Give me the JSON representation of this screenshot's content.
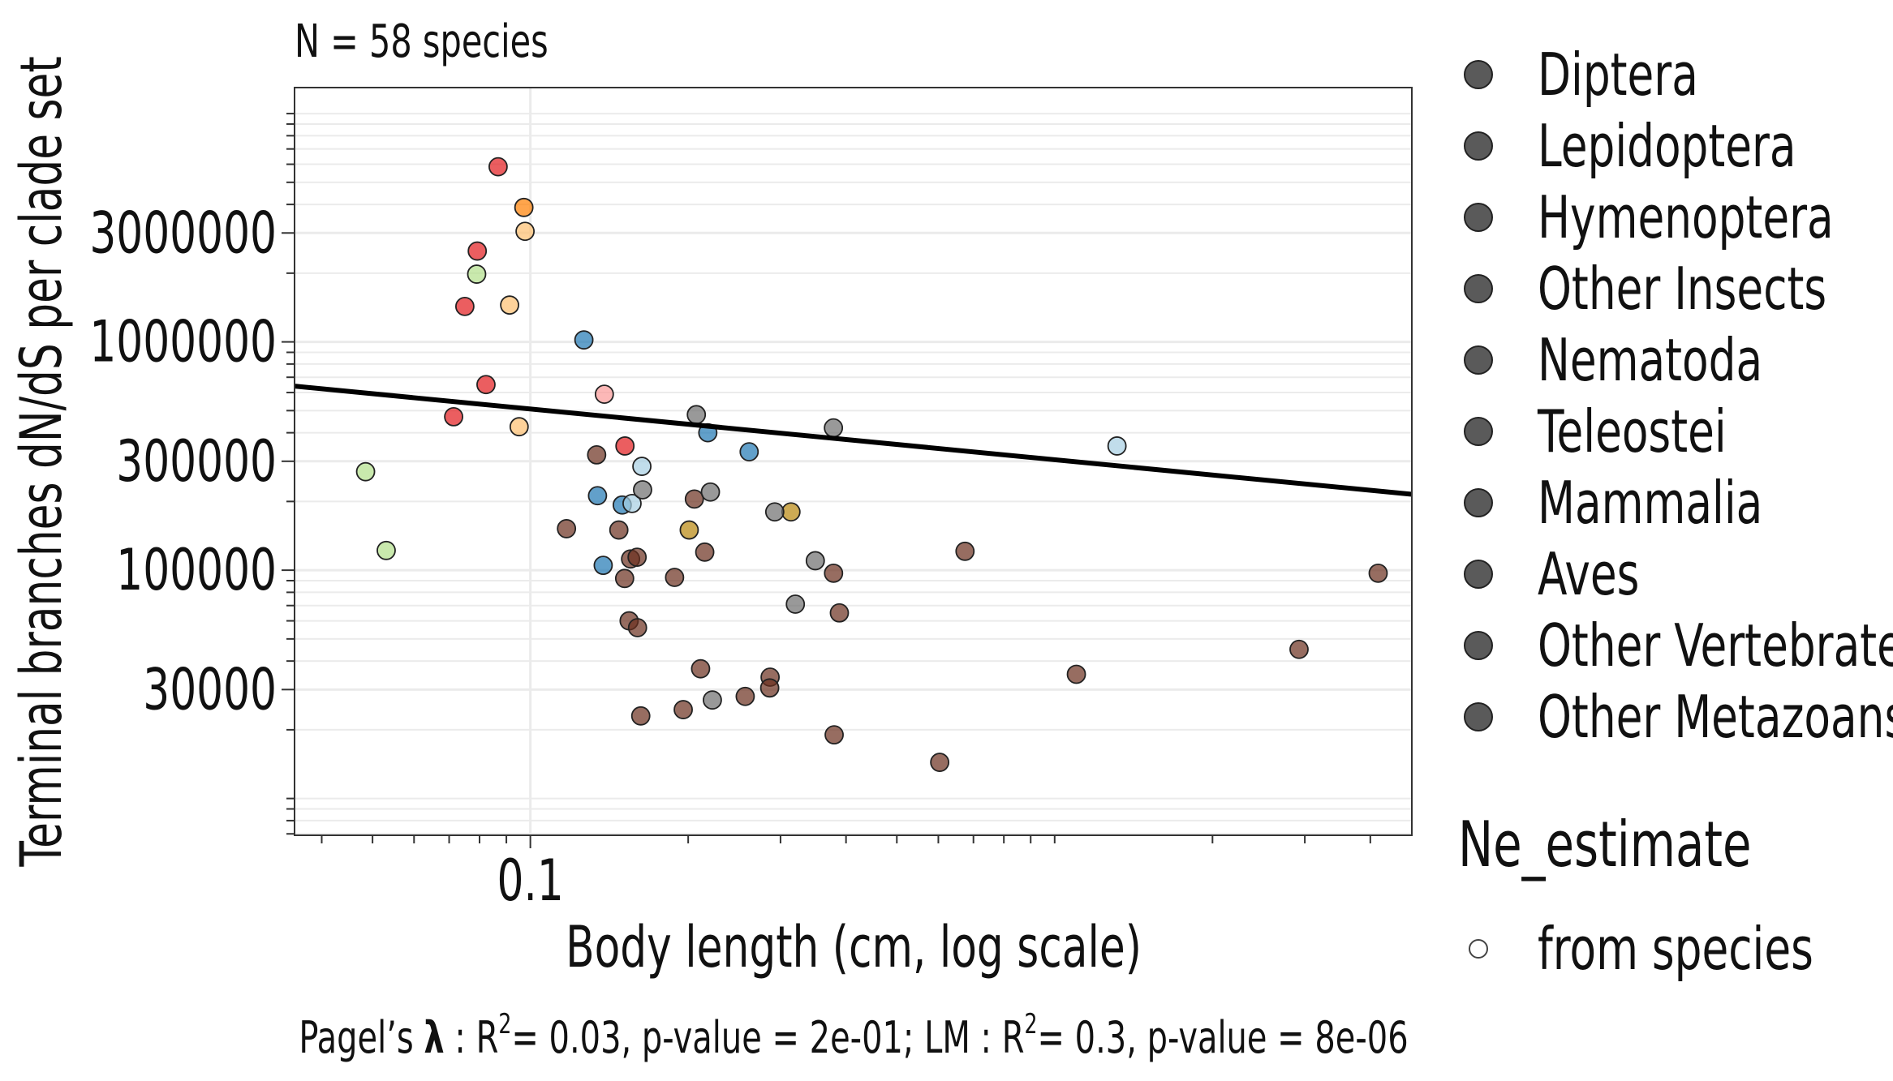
{
  "chart_data": {
    "type": "scatter",
    "title": "N = 58 species",
    "xlabel": "Body length (cm, log scale)",
    "ylabel": "Terminal branches dN/dS per clade set",
    "x_scale": "log",
    "y_scale": "log",
    "xlim": [
      0.0355,
      4.8
    ],
    "ylim": [
      6900,
      13000000
    ],
    "x_ticks": [
      {
        "value": 0.1,
        "label": "0.1"
      }
    ],
    "y_ticks": [
      {
        "value": 30000,
        "label": "30000"
      },
      {
        "value": 100000,
        "label": "100000"
      },
      {
        "value": 300000,
        "label": "300000"
      },
      {
        "value": 1000000,
        "label": "1000000"
      },
      {
        "value": 3000000,
        "label": "3000000"
      }
    ],
    "grid": true,
    "legend_placement": "right",
    "legend": {
      "clade": [
        {
          "name": "Diptera",
          "color": "#e31a1c"
        },
        {
          "name": "Lepidoptera",
          "color": "#ff7f00"
        },
        {
          "name": "Hymenoptera",
          "color": "#fdbf6f"
        },
        {
          "name": "Other Insects",
          "color": "#fb9a99"
        },
        {
          "name": "Nematoda",
          "color": "#b2df8a"
        },
        {
          "name": "Teleostei",
          "color": "#1f78b4"
        },
        {
          "name": "Mammalia",
          "color": "#6b2f1e"
        },
        {
          "name": "Aves",
          "color": "#a6cee3"
        },
        {
          "name": "Other Vertebrates",
          "color": "#b8860b"
        },
        {
          "name": "Other Metazoans",
          "color": "#6e6e6e"
        }
      ],
      "ne_title": "Ne_estimate",
      "ne_items": [
        {
          "name": "from species"
        }
      ]
    },
    "regression_line": {
      "x": [
        0.0355,
        4.8
      ],
      "y": [
        640000,
        215000
      ]
    },
    "footnote": {
      "p1": "Pagel’s ",
      "lambda": "λ",
      "p2": " : R",
      "sup1": "2",
      "p3": "= 0.03, p-value = 2e-01; LM : R",
      "sup2": "2",
      "p4": "= 0.3, p-value = 8e-06"
    },
    "series": [
      {
        "name": "Diptera",
        "points": [
          [
            0.0868,
            5850000
          ],
          [
            0.0792,
            2500000
          ],
          [
            0.075,
            1430000
          ],
          [
            0.0823,
            650000
          ],
          [
            0.0714,
            470000
          ],
          [
            0.1515,
            350000
          ]
        ]
      },
      {
        "name": "Lepidoptera",
        "points": [
          [
            0.0972,
            3880000
          ]
        ]
      },
      {
        "name": "Hymenoptera",
        "points": [
          [
            0.0977,
            3050000
          ],
          [
            0.0913,
            1450000
          ],
          [
            0.0952,
            425000
          ]
        ]
      },
      {
        "name": "Other Insects",
        "points": [
          [
            0.1384,
            590000
          ]
        ]
      },
      {
        "name": "Nematoda",
        "points": [
          [
            0.079,
            1980000
          ],
          [
            0.0485,
            270000
          ],
          [
            0.0531,
            122000
          ]
        ]
      },
      {
        "name": "Teleostei",
        "points": [
          [
            0.1265,
            1020000
          ],
          [
            0.218,
            400000
          ],
          [
            0.2614,
            330000
          ],
          [
            0.1343,
            212000
          ],
          [
            0.1497,
            193000
          ],
          [
            0.1377,
            105000
          ]
        ]
      },
      {
        "name": "Mammalia",
        "points": [
          [
            0.1338,
            320000
          ],
          [
            0.2055,
            205000
          ],
          [
            0.1172,
            152000
          ],
          [
            0.1475,
            150000
          ],
          [
            0.1553,
            112000
          ],
          [
            0.1598,
            114000
          ],
          [
            0.2151,
            120000
          ],
          [
            0.1513,
            92000
          ],
          [
            0.1884,
            93000
          ],
          [
            0.3885,
            65000
          ],
          [
            0.1543,
            60000
          ],
          [
            0.1601,
            56000
          ],
          [
            0.2112,
            37000
          ],
          [
            0.6745,
            121000
          ],
          [
            0.3787,
            97000
          ],
          [
            4.14,
            97000
          ],
          [
            2.925,
            45000
          ],
          [
            1.1,
            35000
          ],
          [
            0.2866,
            34000
          ],
          [
            0.2861,
            30500
          ],
          [
            0.2569,
            28000
          ],
          [
            0.1957,
            24500
          ],
          [
            0.1624,
            23000
          ],
          [
            0.3797,
            19000
          ],
          [
            0.6036,
            14400
          ]
        ]
      },
      {
        "name": "Aves",
        "points": [
          [
            0.1632,
            285000
          ],
          [
            0.1563,
            196000
          ],
          [
            1.315,
            350000
          ]
        ]
      },
      {
        "name": "Other Vertebrates",
        "points": [
          [
            0.2009,
            150000
          ],
          [
            0.3141,
            180000
          ]
        ]
      },
      {
        "name": "Other Metazoans",
        "points": [
          [
            0.2073,
            480000
          ],
          [
            0.3785,
            420000
          ],
          [
            0.1637,
            225000
          ],
          [
            0.2205,
            220000
          ],
          [
            0.2925,
            180000
          ],
          [
            0.3495,
            110000
          ],
          [
            0.3202,
            71000
          ],
          [
            0.2224,
            27000
          ]
        ]
      }
    ]
  }
}
